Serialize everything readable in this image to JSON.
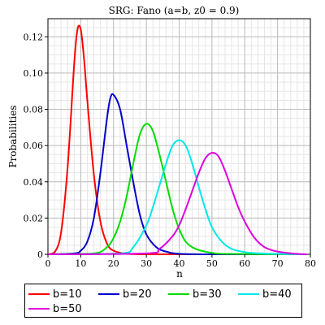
{
  "chart_data": {
    "type": "line",
    "title": "SRG: Fano (a=b, z0 = 0.9)",
    "xlabel": "n",
    "ylabel": "Probabilities",
    "xlim": [
      0,
      80
    ],
    "ylim": [
      0,
      0.13
    ],
    "x_ticks": [
      0,
      10,
      20,
      30,
      40,
      50,
      60,
      70,
      80
    ],
    "y_ticks": [
      0,
      0.02,
      0.04,
      0.06,
      0.08,
      0.1,
      0.12
    ],
    "x_tick_labels": [
      "0",
      "10",
      "20",
      "30",
      "40",
      "50",
      "60",
      "70",
      "80"
    ],
    "y_tick_labels": [
      "0",
      "0.02",
      "0.04",
      "0.06",
      "0.08",
      "0.10",
      "0.12"
    ],
    "grid": true,
    "legend_placement": "bottom",
    "series": [
      {
        "name": "b=10",
        "color": "#ff0000",
        "x": [
          0,
          2,
          4,
          6,
          8,
          9,
          10,
          11,
          12,
          14,
          16,
          18,
          20,
          24,
          30,
          40,
          60,
          79
        ],
        "y": [
          0,
          0.001,
          0.012,
          0.048,
          0.105,
          0.124,
          0.124,
          0.108,
          0.085,
          0.044,
          0.018,
          0.006,
          0.002,
          0.0003,
          0,
          0,
          0,
          0
        ]
      },
      {
        "name": "b=20",
        "color": "#0000cc",
        "x": [
          0,
          8,
          10,
          12,
          14,
          16,
          18,
          19,
          20,
          22,
          24,
          26,
          28,
          30,
          33,
          36,
          40,
          50,
          79
        ],
        "y": [
          0,
          0.0005,
          0.002,
          0.007,
          0.02,
          0.045,
          0.075,
          0.086,
          0.088,
          0.08,
          0.06,
          0.04,
          0.022,
          0.011,
          0.004,
          0.0015,
          0.0003,
          0,
          0
        ]
      },
      {
        "name": "b=30",
        "color": "#00dd00",
        "x": [
          0,
          14,
          18,
          20,
          22,
          24,
          26,
          28,
          30,
          32,
          34,
          36,
          38,
          40,
          42,
          45,
          50,
          55,
          79
        ],
        "y": [
          0,
          0.0005,
          0.004,
          0.009,
          0.018,
          0.032,
          0.05,
          0.066,
          0.072,
          0.068,
          0.055,
          0.04,
          0.025,
          0.014,
          0.007,
          0.003,
          0.0008,
          0.0002,
          0
        ]
      },
      {
        "name": "b=40",
        "color": "#00e8e8",
        "x": [
          0,
          22,
          26,
          30,
          32,
          34,
          36,
          38,
          40,
          42,
          44,
          46,
          48,
          50,
          53,
          56,
          60,
          65,
          70,
          79
        ],
        "y": [
          0,
          0.0005,
          0.004,
          0.016,
          0.026,
          0.038,
          0.05,
          0.06,
          0.063,
          0.06,
          0.05,
          0.037,
          0.025,
          0.015,
          0.007,
          0.003,
          0.0012,
          0.0005,
          0.0002,
          0
        ]
      },
      {
        "name": "b=50",
        "color": "#e000e0",
        "x": [
          0,
          30,
          34,
          38,
          40,
          42,
          44,
          46,
          48,
          50,
          52,
          54,
          56,
          58,
          60,
          63,
          66,
          70,
          75,
          79
        ],
        "y": [
          0,
          0.0005,
          0.003,
          0.01,
          0.016,
          0.025,
          0.035,
          0.045,
          0.053,
          0.056,
          0.054,
          0.046,
          0.036,
          0.026,
          0.018,
          0.009,
          0.004,
          0.0015,
          0.0004,
          0
        ]
      }
    ]
  }
}
